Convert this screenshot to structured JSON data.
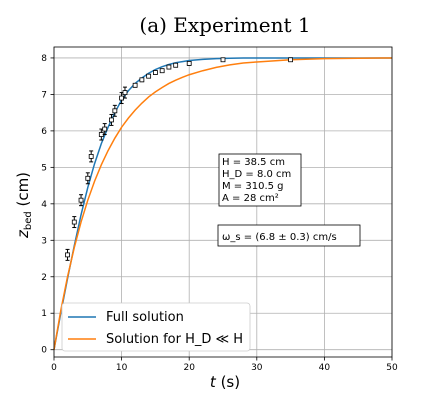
{
  "chart_data": {
    "type": "line",
    "title": "(a) Experiment 1",
    "xlabel": "t (s)",
    "ylabel": "z_bed (cm)",
    "xlim": [
      0,
      50
    ],
    "ylim": [
      -0.2,
      8.3
    ],
    "xticks": [
      "0",
      "10",
      "20",
      "30",
      "40",
      "50"
    ],
    "yticks": [
      "0",
      "1",
      "2",
      "3",
      "4",
      "5",
      "6",
      "7",
      "8"
    ],
    "grid": true,
    "legend": "lower-left",
    "series": [
      {
        "name": "Full solution",
        "color": "#1f77b4",
        "x": [
          0,
          1,
          2,
          3,
          4,
          5,
          6,
          7,
          8,
          9,
          10,
          11,
          12,
          13,
          14,
          15,
          16,
          17,
          18,
          19,
          20,
          22,
          24,
          26,
          28,
          30,
          35,
          40,
          45,
          50
        ],
        "y": [
          0.0,
          1.0,
          1.95,
          2.85,
          3.7,
          4.45,
          5.1,
          5.65,
          6.1,
          6.5,
          6.85,
          7.1,
          7.3,
          7.45,
          7.58,
          7.68,
          7.76,
          7.82,
          7.87,
          7.9,
          7.93,
          7.96,
          7.98,
          7.99,
          8.0,
          8.0,
          8.0,
          8.0,
          8.0,
          8.0
        ]
      },
      {
        "name": "Solution for H_D ≪ H",
        "color": "#ff7f0e",
        "x": [
          0,
          1,
          2,
          3,
          4,
          5,
          6,
          7,
          8,
          9,
          10,
          11,
          12,
          13,
          14,
          15,
          16,
          17,
          18,
          19,
          20,
          22,
          24,
          26,
          28,
          30,
          35,
          40,
          45,
          50
        ],
        "y": [
          0.0,
          1.07,
          2.0,
          2.8,
          3.5,
          4.1,
          4.62,
          5.07,
          5.46,
          5.8,
          6.1,
          6.35,
          6.57,
          6.76,
          6.93,
          7.07,
          7.19,
          7.3,
          7.39,
          7.47,
          7.54,
          7.65,
          7.74,
          7.81,
          7.86,
          7.89,
          7.95,
          7.98,
          7.99,
          8.0
        ]
      }
    ],
    "measurements": {
      "x": [
        2,
        3,
        4,
        5,
        5.5,
        7,
        7.5,
        8.5,
        9,
        10,
        10.5,
        12,
        13,
        14,
        15,
        16,
        17,
        18,
        20,
        25,
        35
      ],
      "y": [
        2.6,
        3.5,
        4.1,
        4.7,
        5.3,
        5.9,
        6.05,
        6.3,
        6.55,
        6.9,
        7.05,
        7.25,
        7.4,
        7.5,
        7.6,
        7.65,
        7.75,
        7.8,
        7.85,
        7.95,
        7.95
      ],
      "err": [
        0.15,
        0.15,
        0.15,
        0.15,
        0.15,
        0.15,
        0.15,
        0.15,
        0.15,
        0.15,
        0.15,
        0.05,
        0.05,
        0.05,
        0.05,
        0.05,
        0.05,
        0.05,
        0.05,
        0.03,
        0.03
      ]
    },
    "annotations": {
      "params": [
        "H = 38.5 cm",
        "H_D = 8.0 cm",
        "M = 310.5 g",
        "A = 28 cm²"
      ],
      "omega": "ω_s = (6.8 ± 0.3) cm/s"
    }
  }
}
